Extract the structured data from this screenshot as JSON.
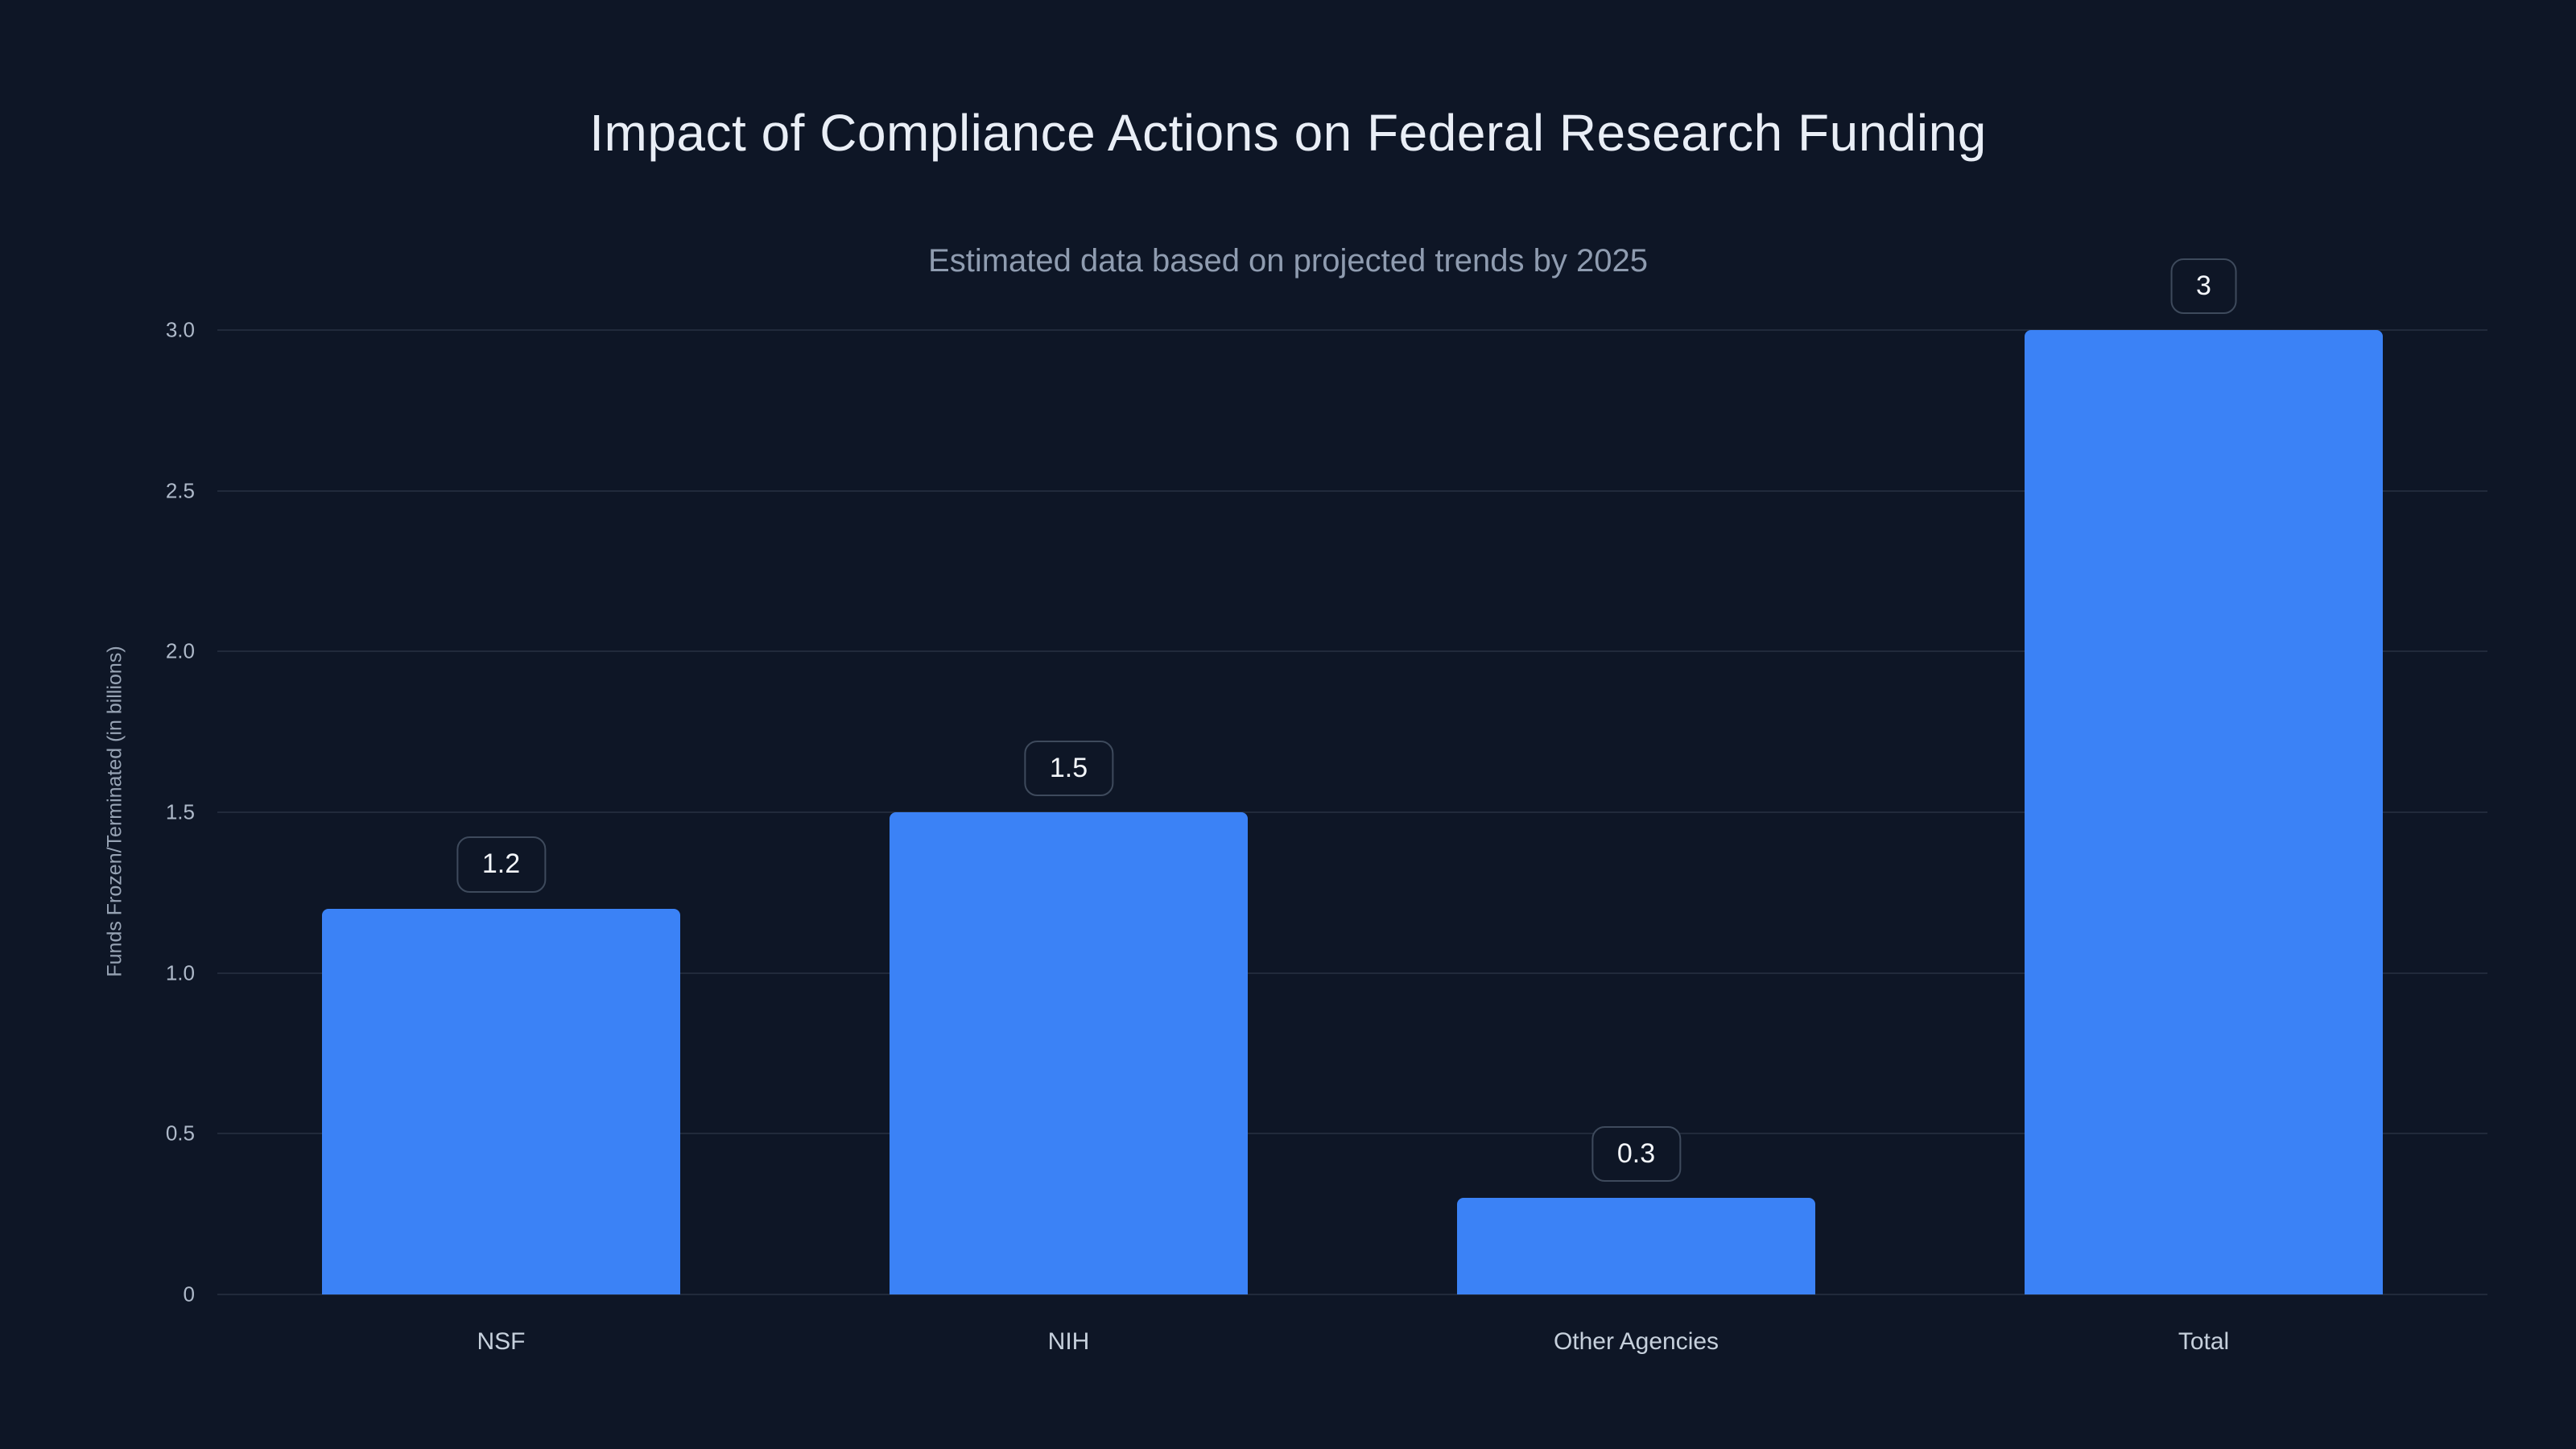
{
  "page": {
    "background": "#0e1626"
  },
  "header": {
    "title": "Impact of Compliance Actions on Federal Research Funding",
    "subtitle": "Estimated data based on projected trends by 2025"
  },
  "chart_data": {
    "type": "bar",
    "title": "Impact of Compliance Actions on Federal Research Funding",
    "subtitle": "Estimated data based on projected trends by 2025",
    "categories": [
      "NSF",
      "NIH",
      "Other Agencies",
      "Total"
    ],
    "values": [
      1.2,
      1.5,
      0.3,
      3
    ],
    "value_labels": [
      "1.2",
      "1.5",
      "0.3",
      "3"
    ],
    "xlabel": "",
    "ylabel": "Funds Frozen/Terminated (in billions)",
    "ylim": [
      0,
      3
    ],
    "yticks": [
      0,
      0.5,
      1.0,
      1.5,
      2.0,
      2.5,
      3.0
    ],
    "ytick_labels": [
      "0",
      "0.5",
      "1.0",
      "1.5",
      "2.0",
      "2.5",
      "3.0"
    ],
    "grid": true,
    "legend": false,
    "colors": {
      "bar": "#3b82f6",
      "background": "#0e1626",
      "grid": "rgba(148,163,184,0.15)",
      "title_text": "#e9eef6",
      "subtitle_text": "#8f9cb0",
      "tick_text": "#aeb9c9",
      "category_text": "#c6d0dc",
      "badge_border": "#3e4a5c",
      "badge_text": "#f3f6fa",
      "axis_title_text": "#97a3b4"
    }
  }
}
